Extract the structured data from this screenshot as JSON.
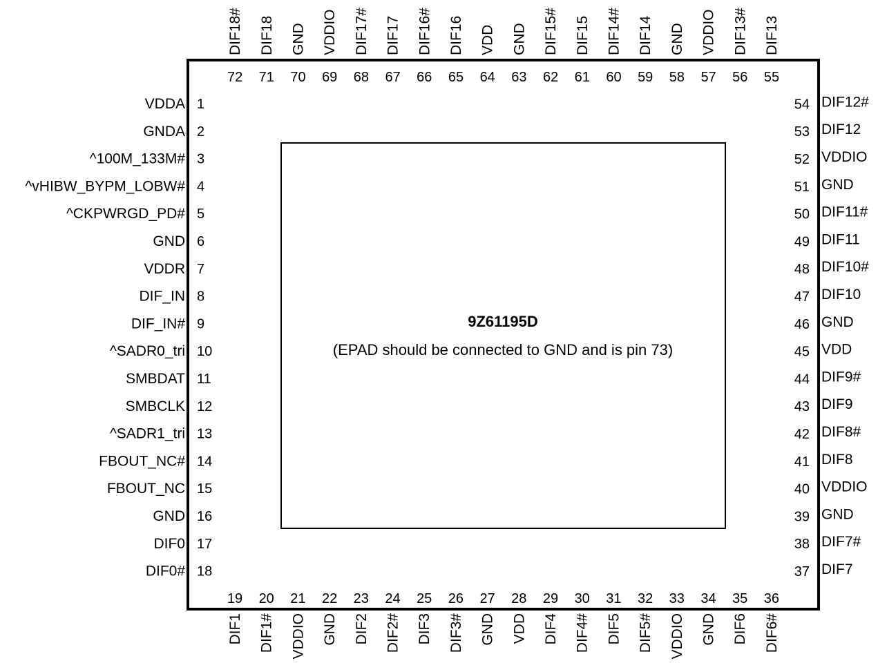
{
  "chip": {
    "name": "9Z61195D",
    "note": "(EPAD should be connected to GND and is pin 73)"
  },
  "pins": {
    "left": [
      {
        "num": "1",
        "name": "VDDA"
      },
      {
        "num": "2",
        "name": "GNDA"
      },
      {
        "num": "3",
        "name": "^100M_133M#"
      },
      {
        "num": "4",
        "name": "^vHIBW_BYPM_LOBW#"
      },
      {
        "num": "5",
        "name": "^CKPWRGD_PD#"
      },
      {
        "num": "6",
        "name": "GND"
      },
      {
        "num": "7",
        "name": "VDDR"
      },
      {
        "num": "8",
        "name": "DIF_IN"
      },
      {
        "num": "9",
        "name": "DIF_IN#"
      },
      {
        "num": "10",
        "name": "^SADR0_tri"
      },
      {
        "num": "11",
        "name": "SMBDAT"
      },
      {
        "num": "12",
        "name": "SMBCLK"
      },
      {
        "num": "13",
        "name": "^SADR1_tri"
      },
      {
        "num": "14",
        "name": "FBOUT_NC#"
      },
      {
        "num": "15",
        "name": "FBOUT_NC"
      },
      {
        "num": "16",
        "name": "GND"
      },
      {
        "num": "17",
        "name": "DIF0"
      },
      {
        "num": "18",
        "name": "DIF0#"
      }
    ],
    "bottom": [
      {
        "num": "19",
        "name": "DIF1"
      },
      {
        "num": "20",
        "name": "DIF1#"
      },
      {
        "num": "21",
        "name": "VDDIO"
      },
      {
        "num": "22",
        "name": "GND"
      },
      {
        "num": "23",
        "name": "DIF2"
      },
      {
        "num": "24",
        "name": "DIF2#"
      },
      {
        "num": "25",
        "name": "DIF3"
      },
      {
        "num": "26",
        "name": "DIF3#"
      },
      {
        "num": "27",
        "name": "GND"
      },
      {
        "num": "28",
        "name": "VDD"
      },
      {
        "num": "29",
        "name": "DIF4"
      },
      {
        "num": "30",
        "name": "DIF4#"
      },
      {
        "num": "31",
        "name": "DIF5"
      },
      {
        "num": "32",
        "name": "DIF5#"
      },
      {
        "num": "33",
        "name": "VDDIO"
      },
      {
        "num": "34",
        "name": "GND"
      },
      {
        "num": "35",
        "name": "DIF6"
      },
      {
        "num": "36",
        "name": "DIF6#"
      }
    ],
    "right": [
      {
        "num": "37",
        "name": "DIF7"
      },
      {
        "num": "38",
        "name": "DIF7#"
      },
      {
        "num": "39",
        "name": "GND"
      },
      {
        "num": "40",
        "name": "VDDIO"
      },
      {
        "num": "41",
        "name": "DIF8"
      },
      {
        "num": "42",
        "name": "DIF8#"
      },
      {
        "num": "43",
        "name": "DIF9"
      },
      {
        "num": "44",
        "name": "DIF9#"
      },
      {
        "num": "45",
        "name": "VDD"
      },
      {
        "num": "46",
        "name": "GND"
      },
      {
        "num": "47",
        "name": "DIF10"
      },
      {
        "num": "48",
        "name": "DIF10#"
      },
      {
        "num": "49",
        "name": "DIF11"
      },
      {
        "num": "50",
        "name": "DIF11#"
      },
      {
        "num": "51",
        "name": "GND"
      },
      {
        "num": "52",
        "name": "VDDIO"
      },
      {
        "num": "53",
        "name": "DIF12"
      },
      {
        "num": "54",
        "name": "DIF12#"
      }
    ],
    "top": [
      {
        "num": "55",
        "name": "DIF13"
      },
      {
        "num": "56",
        "name": "DIF13#"
      },
      {
        "num": "57",
        "name": "VDDIO"
      },
      {
        "num": "58",
        "name": "GND"
      },
      {
        "num": "59",
        "name": "DIF14"
      },
      {
        "num": "60",
        "name": "DIF14#"
      },
      {
        "num": "61",
        "name": "DIF15"
      },
      {
        "num": "62",
        "name": "DIF15#"
      },
      {
        "num": "63",
        "name": "GND"
      },
      {
        "num": "64",
        "name": "VDD"
      },
      {
        "num": "65",
        "name": "DIF16"
      },
      {
        "num": "66",
        "name": "DIF16#"
      },
      {
        "num": "67",
        "name": "DIF17"
      },
      {
        "num": "68",
        "name": "DIF17#"
      },
      {
        "num": "69",
        "name": "VDDIO"
      },
      {
        "num": "70",
        "name": "GND"
      },
      {
        "num": "71",
        "name": "DIF18"
      },
      {
        "num": "72",
        "name": "DIF18#"
      }
    ]
  }
}
